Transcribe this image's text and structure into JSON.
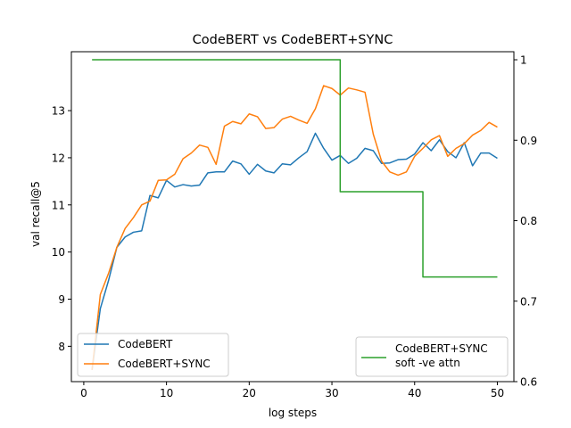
{
  "chart_data": {
    "type": "line",
    "title": "CodeBERT vs CodeBERT+SYNC",
    "xlabel": "log steps",
    "ylabel": "val recall@5",
    "xlim": [
      -1.5,
      52
    ],
    "ylim": [
      7.25,
      14.25
    ],
    "y2lim": [
      0.6,
      1.01
    ],
    "xticks": [
      0,
      10,
      20,
      30,
      40,
      50
    ],
    "yticks": [
      8,
      9,
      10,
      11,
      12,
      13
    ],
    "y2ticks": [
      0.6,
      0.7,
      0.8,
      0.9,
      1.0
    ],
    "y2tick_labels": [
      "0.6",
      "0.7",
      "0.8",
      "0.9",
      "1"
    ],
    "grid": false,
    "x": [
      1,
      2,
      3,
      4,
      5,
      6,
      7,
      8,
      9,
      10,
      11,
      12,
      13,
      14,
      15,
      16,
      17,
      18,
      19,
      20,
      21,
      22,
      23,
      24,
      25,
      26,
      27,
      28,
      29,
      30,
      31,
      32,
      33,
      34,
      35,
      36,
      37,
      38,
      39,
      40,
      41,
      42,
      43,
      44,
      45,
      46,
      47,
      48,
      49,
      50
    ],
    "series": [
      {
        "name": "CodeBERT",
        "axis": "left",
        "color": "#1f77b4",
        "values": [
          7.5,
          8.8,
          9.4,
          10.1,
          10.32,
          10.42,
          10.45,
          11.2,
          11.15,
          11.52,
          11.38,
          11.43,
          11.4,
          11.42,
          11.68,
          11.7,
          11.7,
          11.93,
          11.87,
          11.65,
          11.86,
          11.72,
          11.68,
          11.87,
          11.85,
          12.0,
          12.13,
          12.52,
          12.2,
          11.95,
          12.05,
          11.88,
          11.99,
          12.2,
          12.15,
          11.88,
          11.89,
          11.96,
          11.97,
          12.08,
          12.32,
          12.15,
          12.38,
          12.13,
          12.0,
          12.32,
          11.83,
          12.1,
          12.1,
          11.99
        ]
      },
      {
        "name": "CodeBERT+SYNC",
        "axis": "left",
        "color": "#ff7f0e",
        "values": [
          7.5,
          9.1,
          9.55,
          10.1,
          10.5,
          10.73,
          11.0,
          11.08,
          11.52,
          11.53,
          11.65,
          11.98,
          12.1,
          12.27,
          12.22,
          11.86,
          12.67,
          12.77,
          12.72,
          12.93,
          12.87,
          12.62,
          12.64,
          12.82,
          12.88,
          12.8,
          12.73,
          13.04,
          13.53,
          13.47,
          13.33,
          13.48,
          13.44,
          13.39,
          12.5,
          11.93,
          11.7,
          11.63,
          11.7,
          12.03,
          12.2,
          12.38,
          12.47,
          12.03,
          12.2,
          12.3,
          12.48,
          12.58,
          12.75,
          12.65
        ]
      },
      {
        "name": "CodeBERT+SYNC soft -ve attn",
        "axis": "right",
        "color": "#2ca02c",
        "values": [
          1.0,
          1.0,
          1.0,
          1.0,
          1.0,
          1.0,
          1.0,
          1.0,
          1.0,
          1.0,
          1.0,
          1.0,
          1.0,
          1.0,
          1.0,
          1.0,
          1.0,
          1.0,
          1.0,
          1.0,
          1.0,
          1.0,
          1.0,
          1.0,
          1.0,
          1.0,
          1.0,
          1.0,
          1.0,
          1.0,
          0.836,
          0.836,
          0.836,
          0.836,
          0.836,
          0.836,
          0.836,
          0.836,
          0.836,
          0.836,
          0.73,
          0.73,
          0.73,
          0.73,
          0.73,
          0.73,
          0.73,
          0.73,
          0.73,
          0.73
        ]
      }
    ],
    "legend_left": {
      "placement": "lower left",
      "entries": [
        "CodeBERT",
        "CodeBERT+SYNC"
      ]
    },
    "legend_right": {
      "placement": "lower right",
      "lines": [
        "CodeBERT+SYNC",
        "soft -ve attn"
      ]
    }
  }
}
